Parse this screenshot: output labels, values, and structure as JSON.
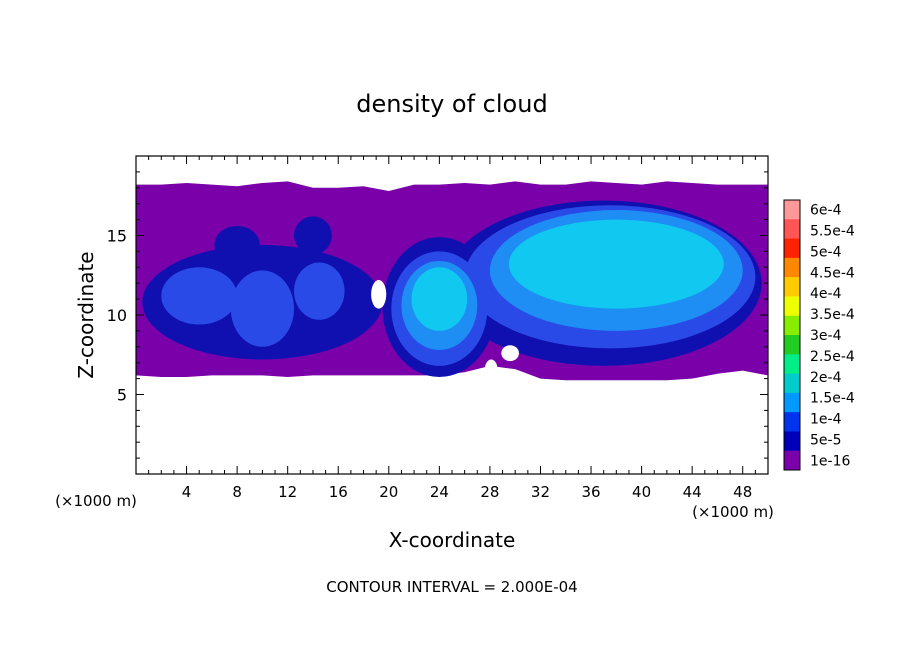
{
  "chart_data": {
    "type": "heatmap",
    "title": "density of cloud",
    "xlabel": "X-coordinate",
    "ylabel": "Z-coordinate",
    "x_unit_left": "(×1000 m)",
    "x_unit_right": "(×1000 m)",
    "xlim": [
      0,
      50
    ],
    "ylim": [
      0,
      20
    ],
    "x_ticks": [
      4,
      8,
      12,
      16,
      20,
      24,
      28,
      32,
      36,
      40,
      44,
      48
    ],
    "y_ticks": [
      5,
      10,
      15
    ],
    "footer": "CONTOUR INTERVAL = 2.000E-04",
    "colorbar": {
      "labels": [
        "6e-4",
        "5.5e-4",
        "5e-4",
        "4.5e-4",
        "4e-4",
        "3.5e-4",
        "3e-4",
        "2.5e-4",
        "2e-4",
        "1.5e-4",
        "1e-4",
        "5e-5",
        "1e-16"
      ],
      "colors": [
        "#ff9999",
        "#ff5555",
        "#ff2200",
        "#ff8800",
        "#ffcc00",
        "#eeff00",
        "#88ee00",
        "#22cc22",
        "#00ee88",
        "#00cccc",
        "#0099ff",
        "#0033ee",
        "#0000bb",
        "#7a00aa"
      ]
    },
    "layer_colors": {
      "background": "#7a00aa",
      "dark_blue": "#1010b0",
      "mid_blue": "#2a4ae8",
      "light_blue": "#1e8ef5",
      "cyan": "#10c8f0"
    },
    "field": {
      "background_band": {
        "x": [
          0,
          2,
          4,
          6,
          8,
          10,
          12,
          14,
          16,
          18,
          20,
          22,
          24,
          26,
          28,
          30,
          32,
          34,
          36,
          38,
          40,
          42,
          44,
          46,
          48,
          50
        ],
        "top": [
          18.2,
          18.2,
          18.3,
          18.2,
          18.1,
          18.3,
          18.4,
          18.0,
          18.0,
          18.1,
          17.8,
          18.2,
          18.2,
          18.3,
          18.2,
          18.4,
          18.2,
          18.2,
          18.4,
          18.3,
          18.2,
          18.4,
          18.3,
          18.2,
          18.2,
          18.2
        ],
        "bottom": [
          6.2,
          6.1,
          6.1,
          6.2,
          6.2,
          6.2,
          6.1,
          6.2,
          6.2,
          6.2,
          6.2,
          6.2,
          6.2,
          6.4,
          6.8,
          6.6,
          6.0,
          5.9,
          5.9,
          5.9,
          5.9,
          5.9,
          6.0,
          6.3,
          6.5,
          6.2
        ]
      },
      "blobs": [
        {
          "level": "dark_blue",
          "cx": 37,
          "cy": 12.0,
          "rx": 12.5,
          "ry": 5.2
        },
        {
          "level": "dark_blue",
          "cx": 24,
          "cy": 10.5,
          "rx": 4.5,
          "ry": 4.4
        },
        {
          "level": "dark_blue",
          "cx": 10,
          "cy": 10.8,
          "rx": 9.5,
          "ry": 3.6
        },
        {
          "level": "dark_blue",
          "cx": 14,
          "cy": 15.0,
          "rx": 1.5,
          "ry": 1.2
        },
        {
          "level": "dark_blue",
          "cx": 8,
          "cy": 14.4,
          "rx": 1.8,
          "ry": 1.2
        },
        {
          "level": "mid_blue",
          "cx": 37.5,
          "cy": 12.4,
          "rx": 11.5,
          "ry": 4.5
        },
        {
          "level": "mid_blue",
          "cx": 24,
          "cy": 10.4,
          "rx": 3.8,
          "ry": 3.6
        },
        {
          "level": "mid_blue",
          "cx": 5,
          "cy": 11.2,
          "rx": 3.0,
          "ry": 1.8
        },
        {
          "level": "mid_blue",
          "cx": 10,
          "cy": 10.4,
          "rx": 2.5,
          "ry": 2.4
        },
        {
          "level": "mid_blue",
          "cx": 14.5,
          "cy": 11.5,
          "rx": 2.0,
          "ry": 1.8
        },
        {
          "level": "light_blue",
          "cx": 38,
          "cy": 12.8,
          "rx": 10.0,
          "ry": 3.8
        },
        {
          "level": "light_blue",
          "cx": 24,
          "cy": 10.6,
          "rx": 3.0,
          "ry": 2.8
        },
        {
          "level": "cyan",
          "cx": 38,
          "cy": 13.2,
          "rx": 8.5,
          "ry": 2.8
        },
        {
          "level": "cyan",
          "cx": 24,
          "cy": 11.0,
          "rx": 2.2,
          "ry": 2.0
        }
      ],
      "holes": [
        {
          "cx": 19.2,
          "cy": 11.3,
          "rx": 0.6,
          "ry": 0.9
        },
        {
          "cx": 29.6,
          "cy": 7.6,
          "rx": 0.7,
          "ry": 0.5
        },
        {
          "cx": 28.1,
          "cy": 6.6,
          "rx": 0.5,
          "ry": 0.6
        }
      ]
    }
  }
}
